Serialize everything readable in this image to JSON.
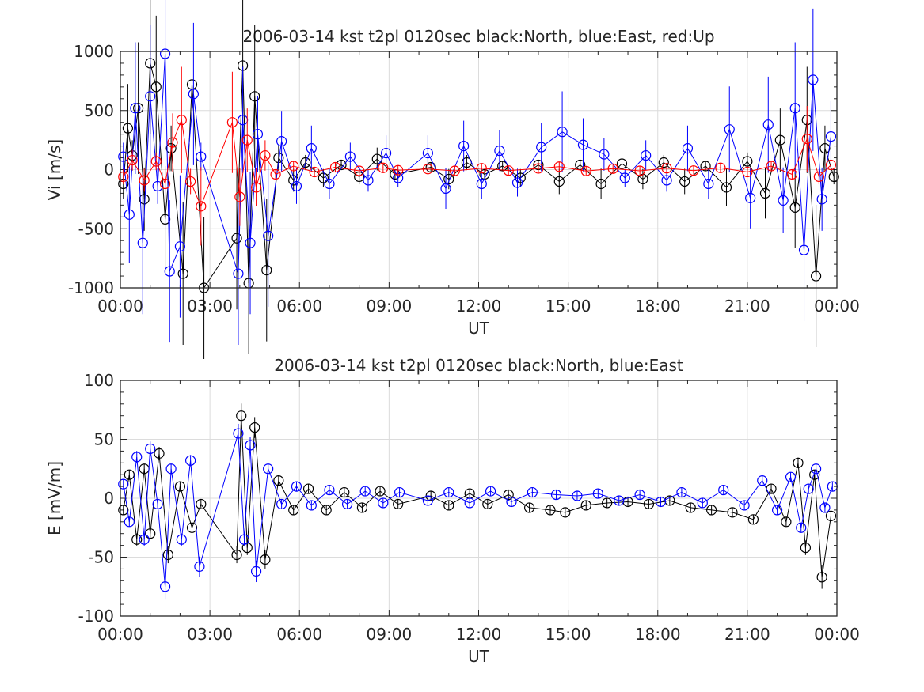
{
  "chart_data": [
    {
      "type": "scatter",
      "title": "2006-03-14 kst t2pl 0120sec black:North, blue:East, red:Up",
      "xlabel": "UT",
      "ylabel": "Vi [m/s]",
      "x_ticks": [
        "00:00",
        "03:00",
        "06:00",
        "09:00",
        "12:00",
        "15:00",
        "18:00",
        "21:00",
        "00:00"
      ],
      "y_ticks": [
        "1000",
        "500",
        "0",
        "-500",
        "-1000"
      ],
      "ylim": [
        -1000,
        1000
      ],
      "xlim_hours": [
        0,
        24
      ],
      "grid": true,
      "series": [
        {
          "color": "#000000",
          "values": [
            {
              "x": 0.1,
              "y": -120
            },
            {
              "x": 0.25,
              "y": 350
            },
            {
              "x": 0.4,
              "y": 120
            },
            {
              "x": 0.6,
              "y": 520
            },
            {
              "x": 0.8,
              "y": -250
            },
            {
              "x": 1.0,
              "y": 900
            },
            {
              "x": 1.2,
              "y": 700
            },
            {
              "x": 1.5,
              "y": -420
            },
            {
              "x": 1.7,
              "y": 180
            },
            {
              "x": 2.1,
              "y": -880
            },
            {
              "x": 2.4,
              "y": 720
            },
            {
              "x": 2.8,
              "y": -1000
            },
            {
              "x": 3.9,
              "y": -580
            },
            {
              "x": 4.1,
              "y": 880
            },
            {
              "x": 4.3,
              "y": -960
            },
            {
              "x": 4.5,
              "y": 620
            },
            {
              "x": 4.9,
              "y": -850
            },
            {
              "x": 5.3,
              "y": 100
            },
            {
              "x": 5.8,
              "y": -90
            },
            {
              "x": 6.2,
              "y": 60
            },
            {
              "x": 6.8,
              "y": -70
            },
            {
              "x": 7.4,
              "y": 40
            },
            {
              "x": 8.0,
              "y": -60
            },
            {
              "x": 8.6,
              "y": 90
            },
            {
              "x": 9.2,
              "y": -40
            },
            {
              "x": 10.4,
              "y": 20
            },
            {
              "x": 11.0,
              "y": -80
            },
            {
              "x": 11.6,
              "y": 60
            },
            {
              "x": 12.2,
              "y": -40
            },
            {
              "x": 12.8,
              "y": 30
            },
            {
              "x": 13.4,
              "y": -70
            },
            {
              "x": 14.0,
              "y": 40
            },
            {
              "x": 14.7,
              "y": -100
            },
            {
              "x": 15.4,
              "y": 40
            },
            {
              "x": 16.1,
              "y": -120
            },
            {
              "x": 16.8,
              "y": 50
            },
            {
              "x": 17.5,
              "y": -80
            },
            {
              "x": 18.2,
              "y": 60
            },
            {
              "x": 18.9,
              "y": -100
            },
            {
              "x": 19.6,
              "y": 30
            },
            {
              "x": 20.3,
              "y": -150
            },
            {
              "x": 21.0,
              "y": 70
            },
            {
              "x": 21.6,
              "y": -200
            },
            {
              "x": 22.1,
              "y": 250
            },
            {
              "x": 22.6,
              "y": -320
            },
            {
              "x": 23.0,
              "y": 420
            },
            {
              "x": 23.3,
              "y": -900
            },
            {
              "x": 23.6,
              "y": 180
            },
            {
              "x": 23.9,
              "y": -60
            }
          ]
        },
        {
          "color": "#0000ff",
          "values": [
            {
              "x": 0.1,
              "y": 110
            },
            {
              "x": 0.3,
              "y": -380
            },
            {
              "x": 0.5,
              "y": 520
            },
            {
              "x": 0.75,
              "y": -620
            },
            {
              "x": 1.0,
              "y": 620
            },
            {
              "x": 1.25,
              "y": -140
            },
            {
              "x": 1.5,
              "y": 980
            },
            {
              "x": 1.65,
              "y": -860
            },
            {
              "x": 2.0,
              "y": -650
            },
            {
              "x": 2.45,
              "y": 640
            },
            {
              "x": 2.7,
              "y": 110
            },
            {
              "x": 3.95,
              "y": -880
            },
            {
              "x": 4.1,
              "y": 420
            },
            {
              "x": 4.35,
              "y": -620
            },
            {
              "x": 4.6,
              "y": 300
            },
            {
              "x": 4.95,
              "y": -560
            },
            {
              "x": 5.4,
              "y": 240
            },
            {
              "x": 5.9,
              "y": -140
            },
            {
              "x": 6.4,
              "y": 180
            },
            {
              "x": 7.0,
              "y": -120
            },
            {
              "x": 7.7,
              "y": 110
            },
            {
              "x": 8.3,
              "y": -90
            },
            {
              "x": 8.9,
              "y": 140
            },
            {
              "x": 9.3,
              "y": -70
            },
            {
              "x": 10.3,
              "y": 140
            },
            {
              "x": 10.9,
              "y": -160
            },
            {
              "x": 11.5,
              "y": 200
            },
            {
              "x": 12.1,
              "y": -120
            },
            {
              "x": 12.7,
              "y": 160
            },
            {
              "x": 13.3,
              "y": -110
            },
            {
              "x": 14.1,
              "y": 190
            },
            {
              "x": 14.8,
              "y": 320
            },
            {
              "x": 15.5,
              "y": 210
            },
            {
              "x": 16.2,
              "y": 130
            },
            {
              "x": 16.9,
              "y": -70
            },
            {
              "x": 17.6,
              "y": 120
            },
            {
              "x": 18.3,
              "y": -90
            },
            {
              "x": 19.0,
              "y": 180
            },
            {
              "x": 19.7,
              "y": -120
            },
            {
              "x": 20.4,
              "y": 340
            },
            {
              "x": 21.1,
              "y": -240
            },
            {
              "x": 21.7,
              "y": 380
            },
            {
              "x": 22.2,
              "y": -260
            },
            {
              "x": 22.6,
              "y": 520
            },
            {
              "x": 22.9,
              "y": -680
            },
            {
              "x": 23.2,
              "y": 760
            },
            {
              "x": 23.5,
              "y": -250
            },
            {
              "x": 23.8,
              "y": 280
            }
          ]
        },
        {
          "color": "#ff0000",
          "values": [
            {
              "x": 0.1,
              "y": -60
            },
            {
              "x": 0.4,
              "y": 80
            },
            {
              "x": 0.8,
              "y": -90
            },
            {
              "x": 1.2,
              "y": 70
            },
            {
              "x": 1.5,
              "y": -120
            },
            {
              "x": 1.75,
              "y": 230
            },
            {
              "x": 2.05,
              "y": 420
            },
            {
              "x": 2.35,
              "y": -100
            },
            {
              "x": 2.7,
              "y": -310
            },
            {
              "x": 3.75,
              "y": 400
            },
            {
              "x": 4.0,
              "y": -230
            },
            {
              "x": 4.25,
              "y": 250
            },
            {
              "x": 4.55,
              "y": -150
            },
            {
              "x": 4.85,
              "y": 120
            },
            {
              "x": 5.2,
              "y": -40
            },
            {
              "x": 5.8,
              "y": 30
            },
            {
              "x": 6.5,
              "y": -20
            },
            {
              "x": 7.2,
              "y": 20
            },
            {
              "x": 8.0,
              "y": -10
            },
            {
              "x": 8.8,
              "y": 15
            },
            {
              "x": 9.3,
              "y": -5
            },
            {
              "x": 10.3,
              "y": 5
            },
            {
              "x": 11.2,
              "y": -10
            },
            {
              "x": 12.1,
              "y": 12
            },
            {
              "x": 13.0,
              "y": -8
            },
            {
              "x": 14.0,
              "y": 10
            },
            {
              "x": 14.7,
              "y": 25
            },
            {
              "x": 15.6,
              "y": -12
            },
            {
              "x": 16.5,
              "y": 8
            },
            {
              "x": 17.4,
              "y": -10
            },
            {
              "x": 18.3,
              "y": 12
            },
            {
              "x": 19.2,
              "y": -8
            },
            {
              "x": 20.1,
              "y": 15
            },
            {
              "x": 21.0,
              "y": -20
            },
            {
              "x": 21.8,
              "y": 30
            },
            {
              "x": 22.5,
              "y": -40
            },
            {
              "x": 23.0,
              "y": 260
            },
            {
              "x": 23.4,
              "y": -60
            },
            {
              "x": 23.8,
              "y": 40
            }
          ]
        }
      ]
    },
    {
      "type": "scatter",
      "title": "2006-03-14 kst t2pl 0120sec black:North, blue:East",
      "xlabel": "UT",
      "ylabel": "E [mV/m]",
      "x_ticks": [
        "00:00",
        "03:00",
        "06:00",
        "09:00",
        "12:00",
        "15:00",
        "18:00",
        "21:00",
        "00:00"
      ],
      "y_ticks": [
        "100",
        "50",
        "0",
        "-50",
        "-100"
      ],
      "ylim": [
        -100,
        100
      ],
      "xlim_hours": [
        0,
        24
      ],
      "grid": true,
      "series": [
        {
          "color": "#000000",
          "values": [
            {
              "x": 0.1,
              "y": -10
            },
            {
              "x": 0.3,
              "y": 20
            },
            {
              "x": 0.55,
              "y": -35
            },
            {
              "x": 0.8,
              "y": 25
            },
            {
              "x": 1.0,
              "y": -30
            },
            {
              "x": 1.3,
              "y": 38
            },
            {
              "x": 1.6,
              "y": -48
            },
            {
              "x": 2.0,
              "y": 10
            },
            {
              "x": 2.4,
              "y": -25
            },
            {
              "x": 2.7,
              "y": -5
            },
            {
              "x": 3.9,
              "y": -48
            },
            {
              "x": 4.05,
              "y": 70
            },
            {
              "x": 4.25,
              "y": -42
            },
            {
              "x": 4.5,
              "y": 60
            },
            {
              "x": 4.85,
              "y": -52
            },
            {
              "x": 5.3,
              "y": 15
            },
            {
              "x": 5.8,
              "y": -10
            },
            {
              "x": 6.3,
              "y": 8
            },
            {
              "x": 6.9,
              "y": -10
            },
            {
              "x": 7.5,
              "y": 5
            },
            {
              "x": 8.1,
              "y": -8
            },
            {
              "x": 8.7,
              "y": 6
            },
            {
              "x": 9.3,
              "y": -5
            },
            {
              "x": 10.4,
              "y": 2
            },
            {
              "x": 11.0,
              "y": -6
            },
            {
              "x": 11.7,
              "y": 4
            },
            {
              "x": 12.3,
              "y": -5
            },
            {
              "x": 13.0,
              "y": 3
            },
            {
              "x": 13.7,
              "y": -8
            },
            {
              "x": 14.4,
              "y": -10
            },
            {
              "x": 14.9,
              "y": -12
            },
            {
              "x": 15.6,
              "y": -6
            },
            {
              "x": 16.3,
              "y": -4
            },
            {
              "x": 17.0,
              "y": -3
            },
            {
              "x": 17.7,
              "y": -5
            },
            {
              "x": 18.4,
              "y": -2
            },
            {
              "x": 19.1,
              "y": -8
            },
            {
              "x": 19.8,
              "y": -10
            },
            {
              "x": 20.5,
              "y": -12
            },
            {
              "x": 21.2,
              "y": -18
            },
            {
              "x": 21.8,
              "y": 8
            },
            {
              "x": 22.3,
              "y": -20
            },
            {
              "x": 22.7,
              "y": 30
            },
            {
              "x": 22.95,
              "y": -42
            },
            {
              "x": 23.25,
              "y": 20
            },
            {
              "x": 23.5,
              "y": -67
            },
            {
              "x": 23.8,
              "y": -15
            }
          ]
        },
        {
          "color": "#0000ff",
          "values": [
            {
              "x": 0.1,
              "y": 12
            },
            {
              "x": 0.3,
              "y": -20
            },
            {
              "x": 0.55,
              "y": 35
            },
            {
              "x": 0.8,
              "y": -35
            },
            {
              "x": 1.0,
              "y": 42
            },
            {
              "x": 1.25,
              "y": -5
            },
            {
              "x": 1.5,
              "y": -75
            },
            {
              "x": 1.7,
              "y": 25
            },
            {
              "x": 2.05,
              "y": -35
            },
            {
              "x": 2.35,
              "y": 32
            },
            {
              "x": 2.65,
              "y": -58
            },
            {
              "x": 3.95,
              "y": 55
            },
            {
              "x": 4.15,
              "y": -35
            },
            {
              "x": 4.35,
              "y": 45
            },
            {
              "x": 4.55,
              "y": -62
            },
            {
              "x": 4.95,
              "y": 25
            },
            {
              "x": 5.4,
              "y": -5
            },
            {
              "x": 5.9,
              "y": 10
            },
            {
              "x": 6.4,
              "y": -6
            },
            {
              "x": 7.0,
              "y": 7
            },
            {
              "x": 7.6,
              "y": -5
            },
            {
              "x": 8.2,
              "y": 6
            },
            {
              "x": 8.8,
              "y": -4
            },
            {
              "x": 9.35,
              "y": 5
            },
            {
              "x": 10.3,
              "y": -2
            },
            {
              "x": 11.0,
              "y": 5
            },
            {
              "x": 11.7,
              "y": -4
            },
            {
              "x": 12.4,
              "y": 6
            },
            {
              "x": 13.1,
              "y": -3
            },
            {
              "x": 13.8,
              "y": 5
            },
            {
              "x": 14.6,
              "y": 3
            },
            {
              "x": 15.3,
              "y": 2
            },
            {
              "x": 16.0,
              "y": 4
            },
            {
              "x": 16.7,
              "y": -2
            },
            {
              "x": 17.4,
              "y": 3
            },
            {
              "x": 18.1,
              "y": -3
            },
            {
              "x": 18.8,
              "y": 5
            },
            {
              "x": 19.5,
              "y": -4
            },
            {
              "x": 20.2,
              "y": 7
            },
            {
              "x": 20.9,
              "y": -6
            },
            {
              "x": 21.5,
              "y": 15
            },
            {
              "x": 22.0,
              "y": -10
            },
            {
              "x": 22.45,
              "y": 18
            },
            {
              "x": 22.8,
              "y": -25
            },
            {
              "x": 23.05,
              "y": 8
            },
            {
              "x": 23.3,
              "y": 25
            },
            {
              "x": 23.6,
              "y": -8
            },
            {
              "x": 23.85,
              "y": 10
            }
          ]
        }
      ]
    }
  ]
}
